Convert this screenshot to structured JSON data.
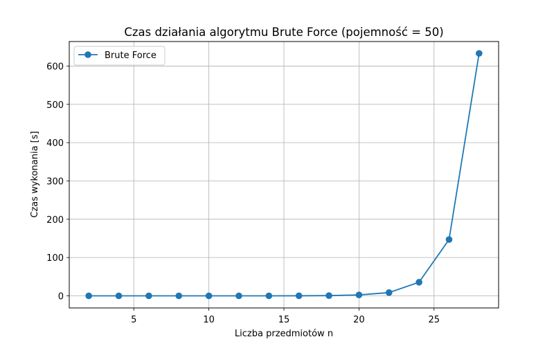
{
  "chart_data": {
    "type": "line",
    "title": "Czas działania algorytmu Brute Force (pojemność = 50)",
    "xlabel": "Liczba przedmiotów n",
    "ylabel": "Czas wykonania [s]",
    "xlim": [
      0.7,
      29.3
    ],
    "ylim": [
      -31.6,
      664.0
    ],
    "x_ticks": [
      5,
      10,
      15,
      20,
      25
    ],
    "y_ticks": [
      0,
      100,
      200,
      300,
      400,
      500,
      600
    ],
    "grid": true,
    "legend_position": "top-left",
    "series": [
      {
        "name": "Brute Force",
        "color": "#1f77b4",
        "marker": "circle",
        "x": [
          2,
          4,
          6,
          8,
          10,
          12,
          14,
          16,
          18,
          20,
          22,
          24,
          26,
          28
        ],
        "values": [
          0.0,
          0.0,
          0.0,
          0.0,
          0.0,
          0.01,
          0.04,
          0.15,
          0.6,
          2.4,
          8.5,
          35.5,
          147,
          633
        ]
      }
    ]
  }
}
